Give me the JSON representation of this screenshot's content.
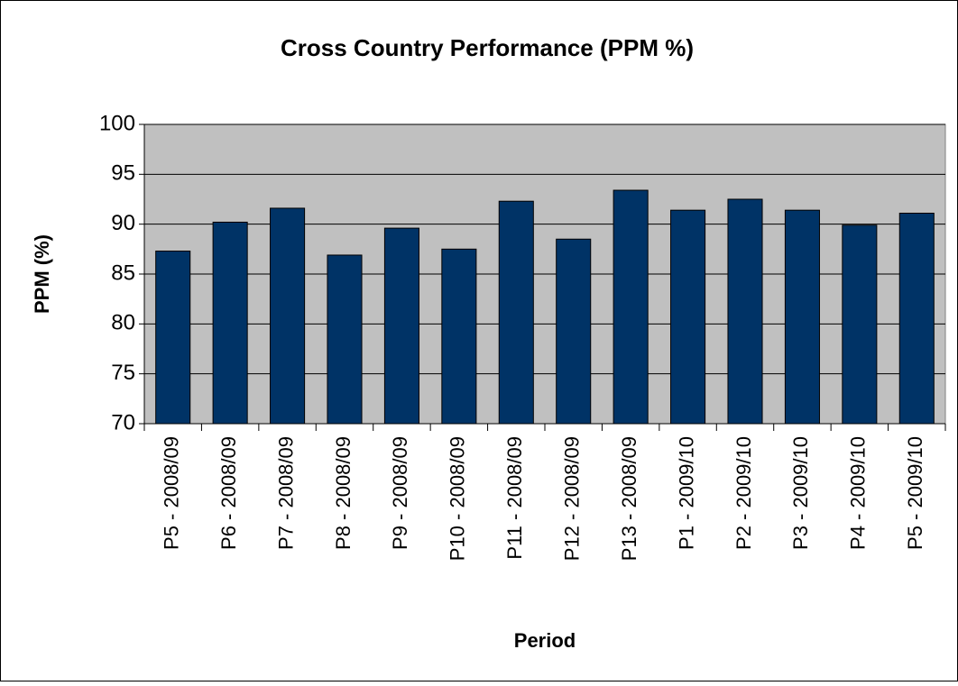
{
  "chart_data": {
    "type": "bar",
    "title": "Cross Country Performance (PPM %)",
    "x_label": "Period",
    "y_label": "PPM (%)",
    "categories": [
      "P5 - 2008/09",
      "P6 - 2008/09",
      "P7 - 2008/09",
      "P8 - 2008/09",
      "P9 - 2008/09",
      "P10 - 2008/09",
      "P11 - 2008/09",
      "P12 - 2008/09",
      "P13 - 2008/09",
      "P1 - 2009/10",
      "P2 - 2009/10",
      "P3 - 2009/10",
      "P4 - 2009/10",
      "P5 - 2009/10"
    ],
    "values": [
      87.3,
      90.2,
      91.6,
      86.9,
      89.6,
      87.5,
      92.3,
      88.5,
      93.4,
      91.4,
      92.5,
      91.4,
      89.9,
      91.1
    ],
    "color": "#003366",
    "ylim": [
      70,
      100
    ],
    "yticks": [
      70,
      75,
      80,
      85,
      90,
      95,
      100
    ],
    "grid": true
  }
}
